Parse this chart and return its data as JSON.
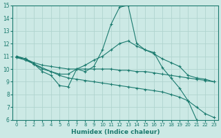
{
  "xlabel": "Humidex (Indice chaleur)",
  "bg_color": "#cce9e5",
  "grid_color": "#b0d4cf",
  "line_color": "#1a7a6e",
  "xlim": [
    -0.5,
    23.5
  ],
  "ylim": [
    6,
    15
  ],
  "xticks": [
    0,
    1,
    2,
    3,
    4,
    5,
    6,
    7,
    8,
    9,
    10,
    11,
    12,
    13,
    14,
    15,
    16,
    17,
    18,
    19,
    20,
    21,
    22,
    23
  ],
  "yticks": [
    6,
    7,
    8,
    9,
    10,
    11,
    12,
    13,
    14,
    15
  ],
  "lines": [
    {
      "x": [
        0,
        1,
        2,
        3,
        4,
        5,
        6,
        7,
        8,
        9,
        10,
        11,
        12,
        13,
        14,
        15,
        16,
        17,
        18,
        19,
        20,
        21,
        22,
        23
      ],
      "y": [
        11.0,
        10.8,
        10.4,
        9.8,
        9.5,
        8.7,
        8.6,
        10.0,
        9.8,
        10.2,
        11.5,
        13.5,
        14.85,
        15.0,
        12.0,
        11.5,
        11.3,
        10.1,
        9.3,
        8.5,
        7.5,
        6.0,
        5.8,
        5.8
      ]
    },
    {
      "x": [
        0,
        1,
        2,
        4,
        5,
        6,
        7,
        8,
        9,
        10,
        11,
        12,
        13,
        14,
        15,
        16,
        17,
        18,
        19,
        20,
        21,
        22,
        23
      ],
      "y": [
        11.0,
        10.8,
        10.4,
        9.8,
        9.6,
        9.6,
        10.0,
        10.3,
        10.7,
        11.0,
        11.5,
        12.0,
        12.2,
        11.8,
        11.5,
        11.2,
        10.8,
        10.5,
        10.2,
        9.5,
        9.3,
        9.2,
        9.0
      ]
    },
    {
      "x": [
        0,
        1,
        2,
        3,
        4,
        5,
        6,
        7,
        8,
        9,
        10,
        11,
        12,
        13,
        14,
        15,
        16,
        17,
        18,
        19,
        20,
        21,
        22,
        23
      ],
      "y": [
        10.9,
        10.8,
        10.5,
        10.3,
        10.2,
        10.1,
        10.0,
        10.0,
        10.0,
        10.0,
        10.0,
        10.0,
        9.9,
        9.9,
        9.8,
        9.8,
        9.7,
        9.6,
        9.5,
        9.4,
        9.3,
        9.2,
        9.1,
        9.0
      ]
    },
    {
      "x": [
        0,
        1,
        2,
        3,
        4,
        5,
        6,
        7,
        8,
        9,
        10,
        11,
        12,
        13,
        14,
        15,
        16,
        17,
        18,
        19,
        20,
        21,
        22,
        23
      ],
      "y": [
        10.9,
        10.7,
        10.4,
        10.0,
        9.8,
        9.5,
        9.3,
        9.2,
        9.1,
        9.0,
        8.9,
        8.8,
        8.7,
        8.6,
        8.5,
        8.4,
        8.3,
        8.2,
        8.0,
        7.8,
        7.5,
        7.0,
        6.5,
        6.2
      ]
    }
  ]
}
